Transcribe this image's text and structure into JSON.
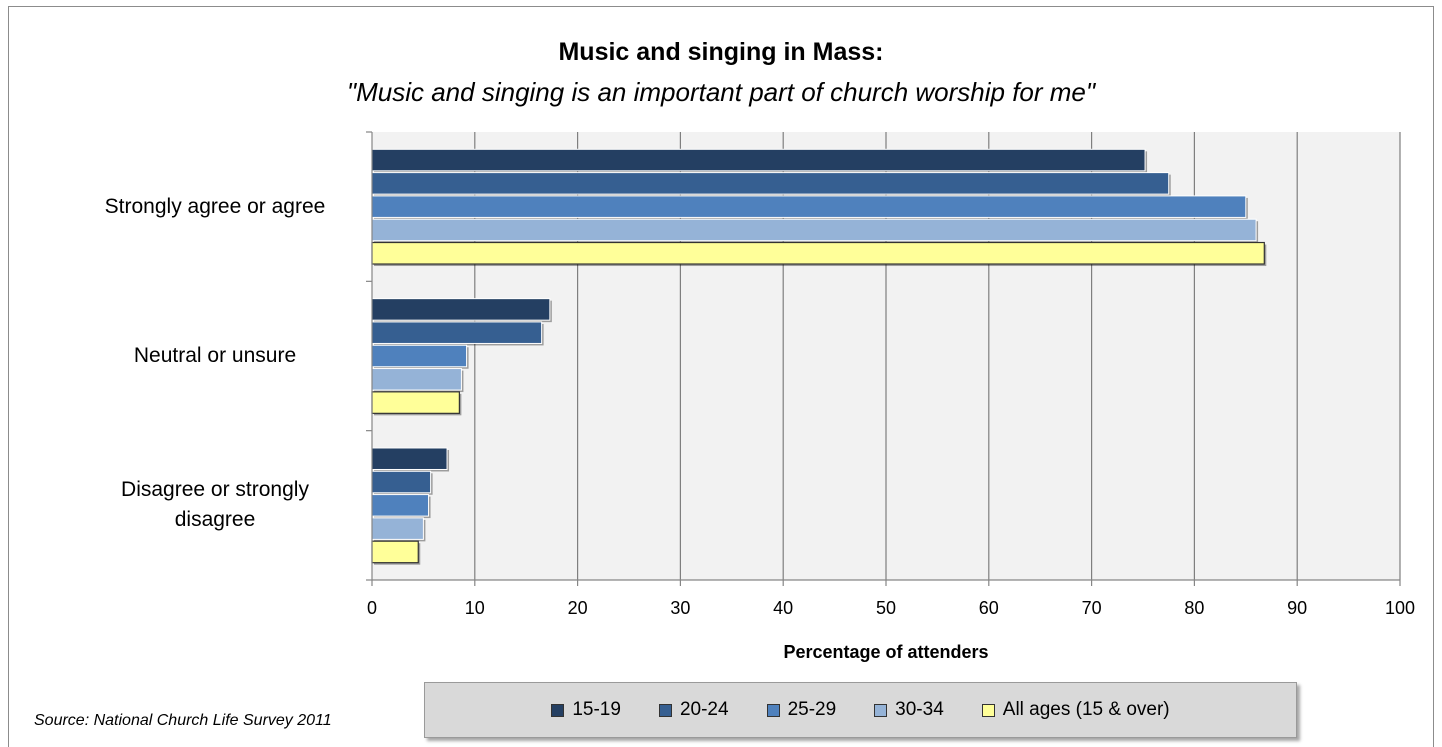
{
  "chart_data": {
    "type": "bar",
    "orientation": "horizontal",
    "title": "Music and singing in Mass:",
    "subtitle": "\"Music and singing is an important part of church worship for me\"",
    "xlabel": "Percentage of attenders",
    "ylabel": "",
    "xlim": [
      0,
      100
    ],
    "xticks": [
      0,
      10,
      20,
      30,
      40,
      50,
      60,
      70,
      80,
      90,
      100
    ],
    "grid": true,
    "legend_position": "bottom",
    "categories": [
      "Strongly agree or agree",
      "Neutral or unsure",
      "Disagree or strongly disagree"
    ],
    "series": [
      {
        "name": "15-19",
        "color": "#243f62",
        "values": [
          75.2,
          17.3,
          7.3
        ]
      },
      {
        "name": "20-24",
        "color": "#365f91",
        "values": [
          77.5,
          16.5,
          5.7
        ]
      },
      {
        "name": "25-29",
        "color": "#4f81bd",
        "values": [
          85.0,
          9.2,
          5.5
        ]
      },
      {
        "name": "30-34",
        "color": "#95b3d7",
        "values": [
          86.0,
          8.7,
          5.0
        ]
      },
      {
        "name": "All ages (15 & over)",
        "color": "#ffff99",
        "values": [
          86.8,
          8.5,
          4.5
        ]
      }
    ],
    "source": "Source: National Church Life Survey 2011"
  }
}
